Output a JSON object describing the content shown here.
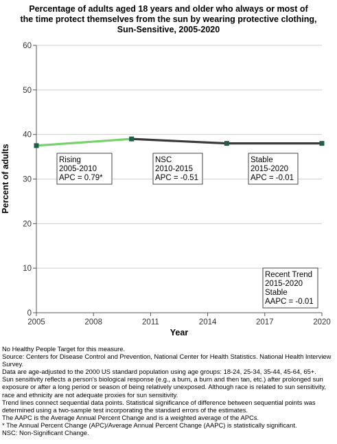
{
  "title_lines": [
    "Percentage of adults aged 18 years and older who always or most of",
    "the time protect themselves from the sun by wearing protective clothing,",
    "Sun-Sensitive,  2005-2020"
  ],
  "chart_data": {
    "type": "line",
    "title": "Percentage of adults aged 18 years and older who always or most of the time protect themselves from the sun by wearing protective clothing, Sun-Sensitive,  2005-2020",
    "xlabel": "Year",
    "ylabel": "Percent of adults",
    "xlim": [
      2005,
      2020
    ],
    "ylim": [
      0,
      60
    ],
    "x_ticks": [
      "2005",
      "2008",
      "2011",
      "2014",
      "2017",
      "2020"
    ],
    "y_ticks": [
      "0",
      "10",
      "20",
      "30",
      "40",
      "50",
      "60"
    ],
    "grid": true,
    "points": [
      {
        "x": 2005,
        "y": 37.5
      },
      {
        "x": 2010,
        "y": 39.0
      },
      {
        "x": 2015,
        "y": 38.0
      },
      {
        "x": 2020,
        "y": 38.0
      }
    ],
    "segments": [
      {
        "from": 2005,
        "to": 2010,
        "color": "#76d36b",
        "label": [
          "Rising",
          "2005-2010",
          "APC =  0.79*"
        ]
      },
      {
        "from": 2010,
        "to": 2015,
        "color": "#3a3a3a",
        "label": [
          "NSC",
          "2010-2015",
          "APC = -0.51"
        ]
      },
      {
        "from": 2015,
        "to": 2020,
        "color": "#3a3a3a",
        "label": [
          "Stable",
          "2015-2020",
          "APC = -0.01"
        ]
      }
    ],
    "recent_trend": [
      "Recent Trend",
      "2015-2020",
      "Stable",
      "AAPC = -0.01"
    ],
    "marker_color": "#1f5f4a"
  },
  "notes": [
    "No Healthy People Target for this measure.",
    "Source: Centers for Disease Control and Prevention, National Center for Health Statistics. National Health Interview Survey.",
    "Data are age-adjusted to the 2000 US standard population using age groups: 18-24, 25-34, 35-44, 45-64, 65+.",
    "Sun sensitivity reflects a person's biological response (e.g., a burn, a burn and then tan, etc.) after prolonged sun exposure or after a long period or season of being relatively unexposed. Although race is related to sun sensitivity, race and ethnicity are not adequate proxies for sun sensitivity.",
    "Trend lines connect sequential data points. Statistical significance of difference between sequential points was determined using a two-sample test incorporating the standard errors of the estimates.",
    "The AAPC is the Average Annual Percent Change and is a weighted average of the APCs.",
    "* The Annual Percent Change (APC)/Average Annual Percent Change (AAPC) is statistically significant.",
    "NSC: Non-Significant Change."
  ]
}
